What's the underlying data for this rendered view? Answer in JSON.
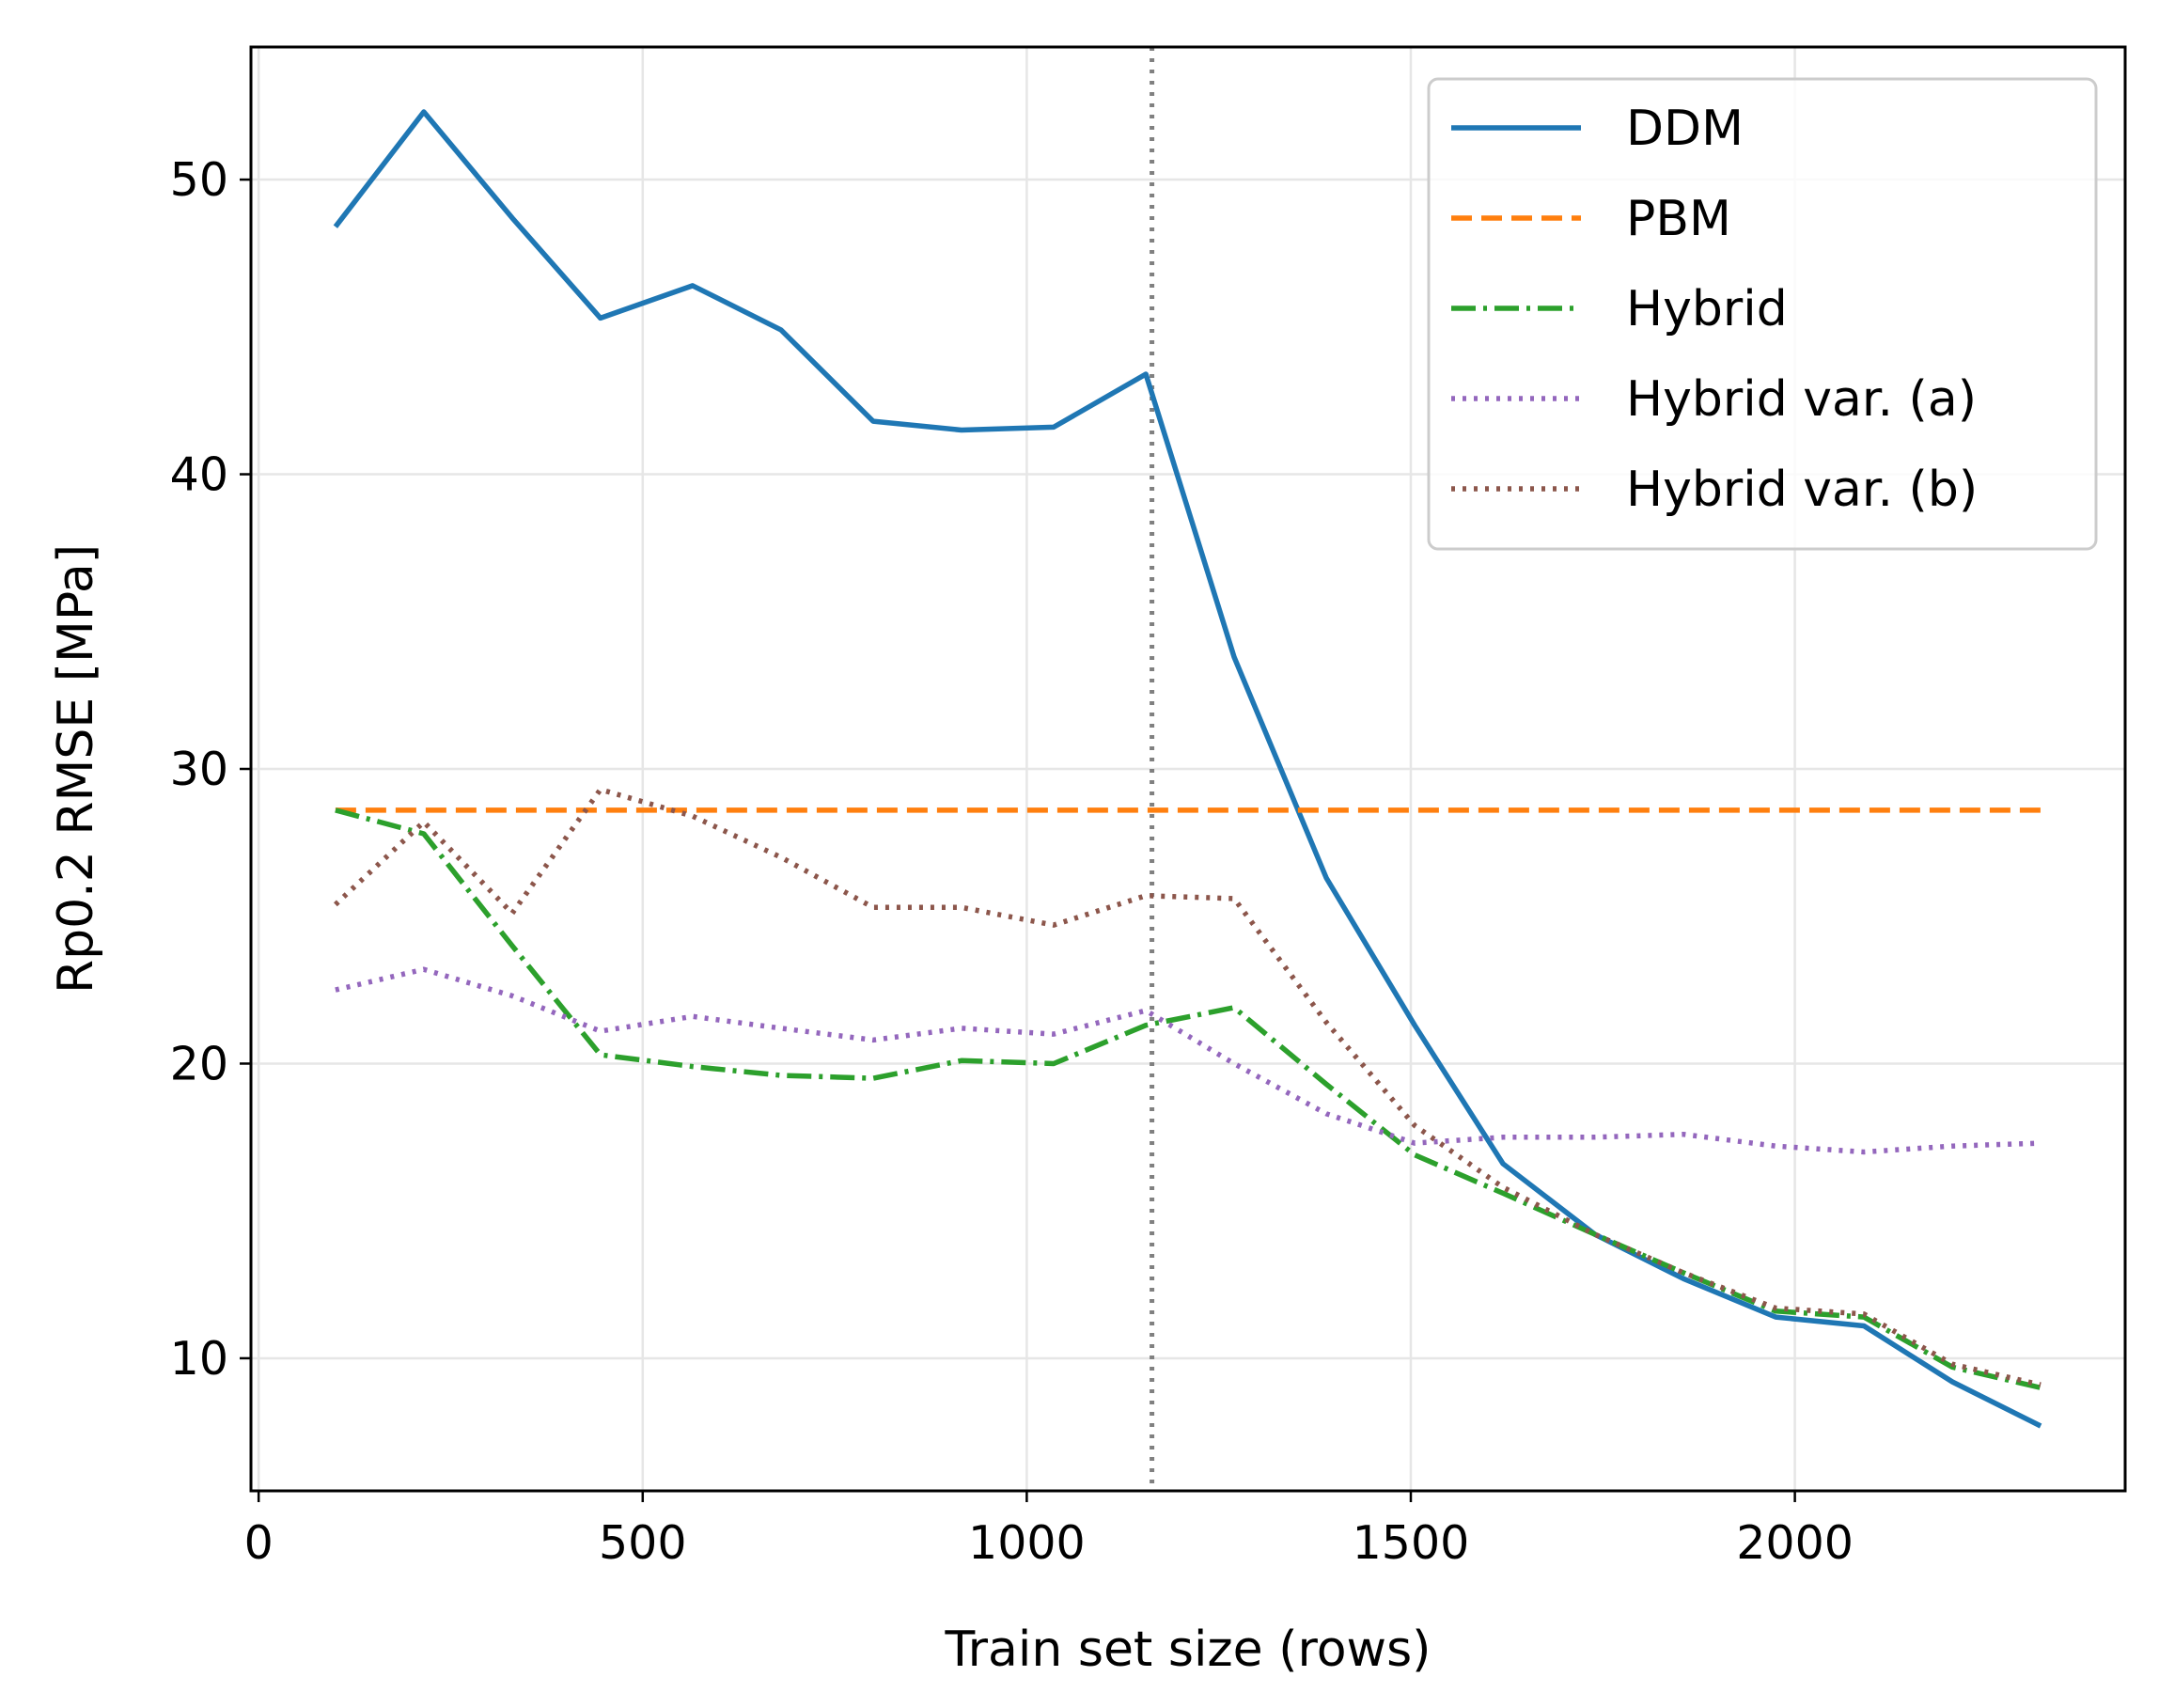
{
  "chart_data": {
    "type": "line",
    "title": "",
    "xlabel": "Train set size (rows)",
    "ylabel": "Rp0.2 RMSE [MPa]",
    "xlim": [
      -10,
      2430
    ],
    "ylim": [
      5.5,
      54.5
    ],
    "xticks": [
      0,
      500,
      1000,
      1500,
      2000
    ],
    "yticks": [
      10,
      20,
      30,
      40,
      50
    ],
    "grid": true,
    "legend_position": "top-right",
    "vline": {
      "x": 1163,
      "color": "#808080",
      "style": "dotted"
    },
    "x": [
      100,
      215,
      330,
      445,
      565,
      680,
      800,
      915,
      1035,
      1155,
      1270,
      1390,
      1505,
      1620,
      1740,
      1855,
      1975,
      2090,
      2205,
      2320
    ],
    "series": [
      {
        "name": "DDM",
        "color": "#1f77b4",
        "dash": "solid",
        "values": [
          48.4,
          52.3,
          48.7,
          45.3,
          46.4,
          44.9,
          41.8,
          41.5,
          41.6,
          43.4,
          33.8,
          26.3,
          21.3,
          16.6,
          14.2,
          12.7,
          11.4,
          11.1,
          9.2,
          7.7
        ]
      },
      {
        "name": "PBM",
        "color": "#ff7f0e",
        "dash": "dashed",
        "values": [
          28.6,
          28.6,
          28.6,
          28.6,
          28.6,
          28.6,
          28.6,
          28.6,
          28.6,
          28.6,
          28.6,
          28.6,
          28.6,
          28.6,
          28.6,
          28.6,
          28.6,
          28.6,
          28.6,
          28.6
        ]
      },
      {
        "name": "Hybrid",
        "color": "#2ca02c",
        "dash": "dashdot",
        "values": [
          28.6,
          27.8,
          24.0,
          20.3,
          19.9,
          19.6,
          19.5,
          20.1,
          20.0,
          21.3,
          21.9,
          19.3,
          16.9,
          15.6,
          14.2,
          12.9,
          11.6,
          11.4,
          9.7,
          9.0
        ]
      },
      {
        "name": "Hybrid var. (a)",
        "color": "#9467bd",
        "dash": "dotted",
        "values": [
          22.5,
          23.2,
          22.3,
          21.1,
          21.6,
          21.2,
          20.8,
          21.2,
          21.0,
          21.8,
          20.0,
          18.3,
          17.3,
          17.5,
          17.5,
          17.6,
          17.2,
          17.0,
          17.2,
          17.3
        ]
      },
      {
        "name": "Hybrid var. (b)",
        "color": "#8c564b",
        "dash": "dotted",
        "values": [
          25.4,
          28.2,
          25.1,
          29.3,
          28.4,
          27.0,
          25.3,
          25.3,
          24.7,
          25.7,
          25.6,
          21.4,
          17.9,
          15.8,
          14.2,
          12.9,
          11.7,
          11.5,
          9.8,
          9.1
        ]
      }
    ]
  }
}
